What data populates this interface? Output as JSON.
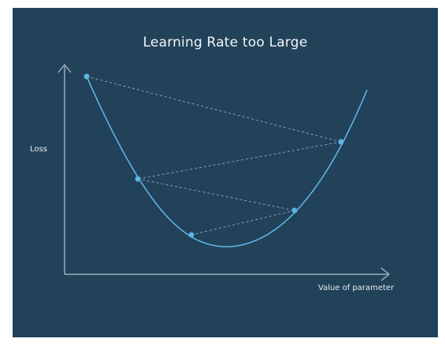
{
  "diagram": {
    "title": "Learning Rate too Large",
    "ylabel": "Loss",
    "xlabel": "Value of parameter"
  },
  "colors": {
    "background": "#22425a",
    "axis": "#d9e2e8",
    "curve": "#5db5e3",
    "points": "#5db5e3",
    "jumps": "#9fb3c3",
    "text": "#f3f6f8"
  }
}
